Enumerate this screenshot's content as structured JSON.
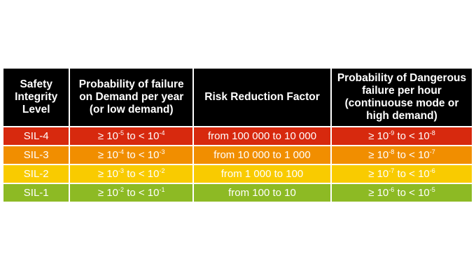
{
  "table": {
    "headers": [
      "Safety Integrity Level",
      "Probability of failure on Demand per year (or low demand)",
      "Risk Reduction Factor",
      "Probability of Dangerous failure per hour (continuouse mode or high demand)"
    ],
    "rows": [
      {
        "level": "SIL-4",
        "color": "#d7290e",
        "pfd": {
          "from_exp": "-5",
          "to_exp": "-4"
        },
        "rrf": "from 100 000 to 10 000",
        "pfh": {
          "from_exp": "-9",
          "to_exp": "-8"
        }
      },
      {
        "level": "SIL-3",
        "color": "#f18e00",
        "pfd": {
          "from_exp": "-4",
          "to_exp": "-3"
        },
        "rrf": "from 10 000 to 1 000",
        "pfh": {
          "from_exp": "-8",
          "to_exp": "-7"
        }
      },
      {
        "level": "SIL-2",
        "color": "#f9cb00",
        "pfd": {
          "from_exp": "-3",
          "to_exp": "-2"
        },
        "rrf": "from 1 000 to 100",
        "pfh": {
          "from_exp": "-7",
          "to_exp": "-6"
        }
      },
      {
        "level": "SIL-1",
        "color": "#8dba24",
        "pfd": {
          "from_exp": "-2",
          "to_exp": "-1"
        },
        "rrf": "from 100 to 10",
        "pfh": {
          "from_exp": "-6",
          "to_exp": "-5"
        }
      }
    ],
    "range_text": {
      "ge": "≥ 10",
      "to": " to < 10"
    }
  }
}
